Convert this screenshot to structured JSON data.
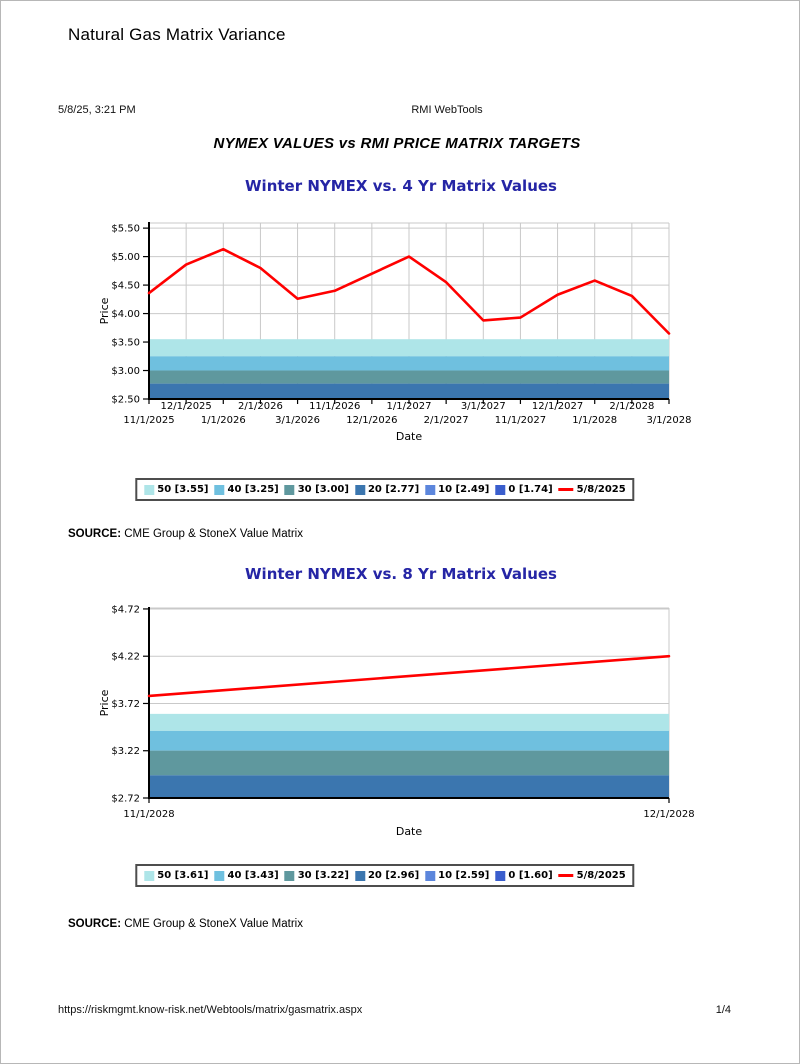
{
  "page": {
    "doc_title": "Natural Gas Matrix Variance",
    "print_timestamp": "5/8/25, 3:21 PM",
    "print_app": "RMI WebTools",
    "main_heading": "NYMEX VALUES vs RMI PRICE MATRIX TARGETS",
    "source_label": "SOURCE:",
    "source_text": "CME Group & StoneX Value Matrix",
    "footer_url": "https://riskmgmt.know-risk.net/Webtools/matrix/gasmatrix.aspx",
    "footer_page": "1/4"
  },
  "colors": {
    "chart_title": "#2525a5",
    "line": "#ff0000",
    "grid": "#c9c9c9",
    "axis": "#000000",
    "legend_border": "#4d4d4d"
  },
  "chart_data": [
    {
      "type": "line",
      "title": "Winter NYMEX vs. 4 Yr Matrix Values",
      "xlabel": "Date",
      "ylabel": "Price",
      "ylim": [
        2.5,
        5.59
      ],
      "y_ticks": [
        5.5,
        5.0,
        4.5,
        4.0,
        3.5,
        3.0,
        2.5
      ],
      "y_tick_labels": [
        "$5.50",
        "$5.00",
        "$4.50",
        "$4.00",
        "$3.50",
        "$3.00",
        "$2.50"
      ],
      "categories": [
        "11/1/2025",
        "12/1/2025",
        "1/1/2026",
        "2/1/2026",
        "3/1/2026",
        "11/1/2026",
        "12/1/2026",
        "1/1/2027",
        "2/1/2027",
        "3/1/2027",
        "11/1/2027",
        "12/1/2027",
        "1/1/2028",
        "2/1/2028",
        "3/1/2028"
      ],
      "series": [
        {
          "name": "5/8/2025",
          "color": "#ff0000",
          "values": [
            4.36,
            4.86,
            5.13,
            4.8,
            4.26,
            4.4,
            4.7,
            5.0,
            4.55,
            3.88,
            3.93,
            4.33,
            4.58,
            4.31,
            3.65
          ]
        }
      ],
      "bands": [
        {
          "label": "50 [3.55]",
          "value": 3.55,
          "color": "#aee5e8"
        },
        {
          "label": "40 [3.25]",
          "value": 3.25,
          "color": "#6fc0df"
        },
        {
          "label": "30 [3.00]",
          "value": 3.0,
          "color": "#5f989e"
        },
        {
          "label": "20 [2.77]",
          "value": 2.77,
          "color": "#3b76af"
        },
        {
          "label": "10 [2.49]",
          "value": 2.49,
          "color": "#5c86dc"
        },
        {
          "label": "0 [1.74]",
          "value": 1.74,
          "color": "#3a5ecd"
        }
      ],
      "legend_line_label": "5/8/2025",
      "grid_vertical": true,
      "legend_position": "bottom"
    },
    {
      "type": "line",
      "title": "Winter NYMEX vs. 8 Yr Matrix Values",
      "xlabel": "Date",
      "ylabel": "Price",
      "ylim": [
        2.72,
        4.73
      ],
      "y_ticks": [
        4.72,
        4.22,
        3.72,
        3.22,
        2.72
      ],
      "y_tick_labels": [
        "$4.72",
        "$4.22",
        "$3.72",
        "$3.22",
        "$2.72"
      ],
      "categories": [
        "11/1/2028",
        "12/1/2028"
      ],
      "series": [
        {
          "name": "5/8/2025",
          "color": "#ff0000",
          "values": [
            3.8,
            4.22
          ]
        }
      ],
      "bands": [
        {
          "label": "50 [3.61]",
          "value": 3.61,
          "color": "#aee5e8"
        },
        {
          "label": "40 [3.43]",
          "value": 3.43,
          "color": "#6fc0df"
        },
        {
          "label": "30 [3.22]",
          "value": 3.22,
          "color": "#5f989e"
        },
        {
          "label": "20 [2.96]",
          "value": 2.96,
          "color": "#3b76af"
        },
        {
          "label": "10 [2.59]",
          "value": 2.59,
          "color": "#5c86dc"
        },
        {
          "label": "0 [1.60]",
          "value": 1.6,
          "color": "#3a5ecd"
        }
      ],
      "legend_line_label": "5/8/2025",
      "grid_vertical": false,
      "legend_position": "bottom"
    }
  ]
}
